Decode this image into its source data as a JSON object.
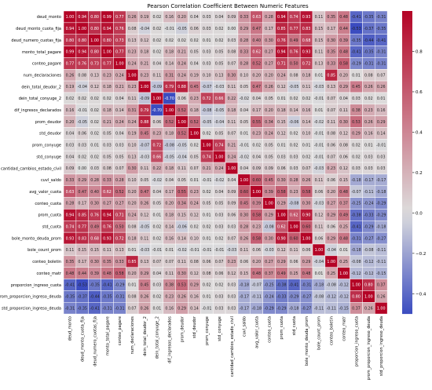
{
  "chart_data": {
    "type": "heatmap",
    "title": "Pearson Correlation Coefficient Between Numeric Features",
    "labels": [
      "deud_monto",
      "deud_monto_cuota_fija",
      "deud_numero_cuotas_fija",
      "monto_total_pagare",
      "conteo_pagare",
      "num_declaraciones",
      "dein_total_deudor_2",
      "dein_total_conyuge_2",
      "dif_ingresos_declarados",
      "prom_deudor",
      "std_deudor",
      "prom_conyuge",
      "std_conyuge",
      "cantidad_cambios_estado_civil",
      "cuvl_saldo",
      "avg_valor_cuota",
      "conteo_cuota",
      "prom_cuota",
      "std_cuota",
      "bole_monto_deuda_prom",
      "bole_count_prom",
      "conteo_boletin",
      "conteo_matr",
      "proporcion_ingreso_cuota",
      "prom_proporcion_ingreso_deuda",
      "std_proporcion_ingreso_deuda"
    ],
    "matrix": [
      [
        1.0,
        0.94,
        0.8,
        0.99,
        0.77,
        0.26,
        0.19,
        0.02,
        0.16,
        0.2,
        0.04,
        0.03,
        0.04,
        0.09,
        0.33,
        0.63,
        0.28,
        0.94,
        0.74,
        0.93,
        0.11,
        0.35,
        0.48,
        -0.41,
        -0.35,
        -0.31
      ],
      [
        0.94,
        1.0,
        0.8,
        0.94,
        0.76,
        0.08,
        -0.04,
        0.02,
        -0.01,
        -0.05,
        0.06,
        0.03,
        0.02,
        0.0,
        0.29,
        0.47,
        0.17,
        0.85,
        0.77,
        0.83,
        0.15,
        0.17,
        0.44,
        -0.53,
        -0.37,
        -0.35
      ],
      [
        0.8,
        0.8,
        1.0,
        0.8,
        0.73,
        0.13,
        0.12,
        0.02,
        0.02,
        0.02,
        0.02,
        0.01,
        0.02,
        0.03,
        0.28,
        0.4,
        0.3,
        0.76,
        0.49,
        0.68,
        0.15,
        0.3,
        0.39,
        -0.35,
        -0.44,
        -0.41
      ],
      [
        0.99,
        0.94,
        0.8,
        1.0,
        0.77,
        0.23,
        0.18,
        0.02,
        0.18,
        0.21,
        0.05,
        0.03,
        0.05,
        0.08,
        0.33,
        0.62,
        0.27,
        0.94,
        0.76,
        0.93,
        0.11,
        0.35,
        0.48,
        -0.41,
        -0.35,
        -0.31
      ],
      [
        0.77,
        0.76,
        0.73,
        0.77,
        1.0,
        0.24,
        0.21,
        0.04,
        0.14,
        0.24,
        0.04,
        0.03,
        0.05,
        0.07,
        0.28,
        0.52,
        0.27,
        0.71,
        0.5,
        0.72,
        0.13,
        0.33,
        0.58,
        -0.29,
        -0.31,
        -0.31
      ],
      [
        0.26,
        0.08,
        0.13,
        0.23,
        0.24,
        1.0,
        0.23,
        0.11,
        0.31,
        0.24,
        0.19,
        0.1,
        0.13,
        0.3,
        0.1,
        0.2,
        0.2,
        0.24,
        0.08,
        0.18,
        0.01,
        0.85,
        0.2,
        0.01,
        0.08,
        0.07
      ],
      [
        0.19,
        -0.04,
        0.12,
        0.18,
        0.21,
        0.23,
        1.0,
        -0.09,
        0.79,
        0.88,
        0.45,
        -0.07,
        -0.03,
        0.11,
        0.05,
        0.47,
        0.26,
        0.12,
        -0.05,
        0.11,
        -0.03,
        0.13,
        0.29,
        0.45,
        0.26,
        0.26
      ],
      [
        0.02,
        0.02,
        0.02,
        0.02,
        0.04,
        0.11,
        -0.09,
        1.0,
        -0.7,
        0.06,
        0.23,
        0.72,
        0.66,
        0.22,
        -0.02,
        0.04,
        0.05,
        0.01,
        0.02,
        0.02,
        -0.01,
        0.07,
        0.04,
        0.03,
        0.02,
        0.01
      ],
      [
        0.16,
        -0.01,
        0.02,
        0.18,
        0.14,
        0.31,
        0.79,
        -0.7,
        1.0,
        0.52,
        0.18,
        -0.08,
        -0.05,
        0.18,
        0.04,
        0.17,
        0.2,
        0.18,
        0.14,
        0.16,
        0.01,
        0.07,
        0.11,
        0.38,
        0.23,
        0.16
      ],
      [
        0.2,
        -0.05,
        0.02,
        0.21,
        0.24,
        0.24,
        0.88,
        0.06,
        0.52,
        1.0,
        0.52,
        -0.05,
        -0.04,
        0.11,
        0.05,
        0.55,
        0.34,
        0.15,
        -0.06,
        0.14,
        -0.02,
        0.11,
        0.3,
        0.53,
        0.26,
        0.29
      ],
      [
        0.04,
        0.06,
        0.02,
        0.05,
        0.04,
        0.19,
        0.45,
        0.23,
        0.18,
        0.52,
        1.0,
        0.02,
        0.05,
        0.07,
        0.01,
        0.23,
        0.24,
        0.12,
        0.02,
        0.1,
        -0.01,
        0.08,
        0.12,
        0.29,
        0.16,
        0.14
      ],
      [
        0.03,
        0.03,
        0.01,
        0.03,
        0.03,
        0.1,
        -0.07,
        0.72,
        -0.08,
        -0.05,
        0.02,
        1.0,
        0.74,
        0.21,
        -0.01,
        0.02,
        0.05,
        0.01,
        0.02,
        0.01,
        -0.01,
        0.06,
        0.08,
        0.02,
        0.01,
        -0.01
      ],
      [
        0.04,
        0.02,
        0.02,
        0.05,
        0.05,
        0.13,
        -0.03,
        0.66,
        -0.05,
        -0.04,
        0.05,
        0.74,
        1.0,
        0.24,
        -0.02,
        0.04,
        0.05,
        0.03,
        0.03,
        0.02,
        -0.01,
        0.07,
        0.06,
        0.02,
        0.03,
        0.03
      ],
      [
        0.09,
        0.0,
        0.03,
        0.08,
        0.07,
        0.3,
        0.11,
        0.22,
        0.18,
        0.11,
        0.07,
        0.21,
        0.24,
        1.0,
        0.04,
        0.09,
        0.09,
        0.06,
        0.03,
        0.07,
        -0.03,
        0.23,
        0.12,
        0.03,
        0.03,
        0.03
      ],
      [
        0.33,
        0.29,
        0.28,
        0.33,
        0.28,
        0.1,
        0.05,
        -0.02,
        0.04,
        0.05,
        0.01,
        -0.01,
        -0.02,
        0.04,
        1.0,
        0.6,
        0.45,
        0.3,
        0.28,
        0.26,
        0.11,
        0.06,
        0.15,
        -0.18,
        -0.17,
        -0.17
      ],
      [
        0.63,
        0.47,
        0.4,
        0.62,
        0.52,
        0.2,
        0.47,
        0.04,
        0.17,
        0.55,
        0.23,
        0.02,
        0.04,
        0.09,
        0.6,
        1.0,
        0.39,
        0.58,
        0.23,
        0.58,
        0.06,
        0.2,
        0.48,
        -0.07,
        -0.11,
        -0.18
      ],
      [
        0.28,
        0.17,
        0.3,
        0.27,
        0.27,
        0.2,
        0.26,
        0.05,
        0.2,
        0.34,
        0.24,
        0.05,
        0.05,
        0.09,
        0.45,
        0.39,
        1.0,
        0.29,
        -0.08,
        0.3,
        -0.03,
        0.27,
        0.37,
        -0.25,
        -0.24,
        -0.29
      ],
      [
        0.94,
        0.85,
        0.76,
        0.94,
        0.71,
        0.24,
        0.12,
        0.01,
        0.18,
        0.15,
        0.12,
        0.01,
        0.03,
        0.06,
        0.3,
        0.58,
        0.29,
        1.0,
        0.62,
        0.9,
        0.12,
        0.29,
        0.49,
        -0.38,
        -0.33,
        -0.29
      ],
      [
        0.74,
        0.77,
        0.49,
        0.76,
        0.5,
        0.08,
        -0.05,
        0.02,
        0.14,
        -0.06,
        0.02,
        0.02,
        0.03,
        0.03,
        0.28,
        0.23,
        -0.08,
        0.62,
        1.0,
        0.6,
        0.11,
        0.06,
        0.25,
        -0.41,
        -0.29,
        -0.18
      ],
      [
        0.93,
        0.83,
        0.68,
        0.93,
        0.72,
        0.18,
        0.11,
        0.02,
        0.16,
        0.14,
        0.1,
        0.01,
        0.02,
        0.07,
        0.26,
        0.58,
        0.3,
        0.9,
        0.6,
        1.0,
        0.06,
        0.29,
        0.48,
        -0.31,
        -0.27,
        -0.27
      ],
      [
        0.11,
        0.15,
        0.15,
        0.11,
        0.13,
        0.01,
        -0.03,
        -0.01,
        0.01,
        -0.02,
        -0.01,
        -0.01,
        -0.01,
        -0.03,
        0.11,
        0.06,
        -0.03,
        0.12,
        0.11,
        0.06,
        1.0,
        -0.04,
        0.01,
        -0.18,
        -0.08,
        -0.11
      ],
      [
        0.35,
        0.17,
        0.3,
        0.35,
        0.33,
        0.85,
        0.13,
        0.07,
        0.07,
        0.11,
        0.08,
        0.06,
        0.07,
        0.23,
        0.06,
        0.2,
        0.27,
        0.29,
        0.06,
        0.29,
        -0.04,
        1.0,
        0.25,
        -0.08,
        -0.12,
        -0.11
      ],
      [
        0.48,
        0.44,
        0.39,
        0.48,
        0.58,
        0.2,
        0.29,
        0.04,
        0.11,
        0.3,
        0.12,
        0.08,
        0.06,
        0.12,
        0.15,
        0.48,
        0.37,
        0.49,
        0.25,
        0.48,
        0.01,
        0.25,
        1.0,
        -0.12,
        -0.12,
        -0.15
      ],
      [
        -0.41,
        -0.53,
        -0.35,
        -0.41,
        -0.29,
        0.01,
        0.45,
        0.03,
        0.38,
        0.53,
        0.29,
        0.02,
        0.02,
        0.03,
        -0.18,
        -0.07,
        -0.25,
        -0.38,
        -0.41,
        -0.31,
        -0.18,
        -0.08,
        -0.12,
        1.0,
        0.8,
        0.37
      ],
      [
        -0.35,
        -0.37,
        -0.44,
        -0.35,
        -0.31,
        0.08,
        0.26,
        0.02,
        0.23,
        0.26,
        0.16,
        0.01,
        0.03,
        0.03,
        -0.17,
        -0.11,
        -0.24,
        -0.33,
        -0.29,
        -0.27,
        -0.08,
        -0.12,
        -0.12,
        0.8,
        1.0,
        0.26
      ],
      [
        -0.31,
        -0.35,
        -0.41,
        -0.31,
        -0.31,
        0.07,
        0.26,
        0.01,
        0.16,
        0.29,
        0.14,
        -0.01,
        0.03,
        0.03,
        -0.17,
        -0.18,
        -0.29,
        -0.29,
        -0.18,
        -0.27,
        -0.11,
        -0.11,
        -0.15,
        0.37,
        0.26,
        1.0
      ]
    ],
    "colorbar": {
      "range": [
        -0.5,
        1.0
      ],
      "ticks": [
        "0.8",
        "0.6",
        "0.4",
        "0.2",
        "0.0",
        "−0.2",
        "−0.4"
      ],
      "tick_values": [
        0.8,
        0.6,
        0.4,
        0.2,
        0.0,
        -0.2,
        -0.4
      ]
    },
    "colormap": {
      "low": "#3b4cc0",
      "mid": "#dddddd",
      "high": "#b40426"
    },
    "annotate_cells": true,
    "grid": false
  }
}
